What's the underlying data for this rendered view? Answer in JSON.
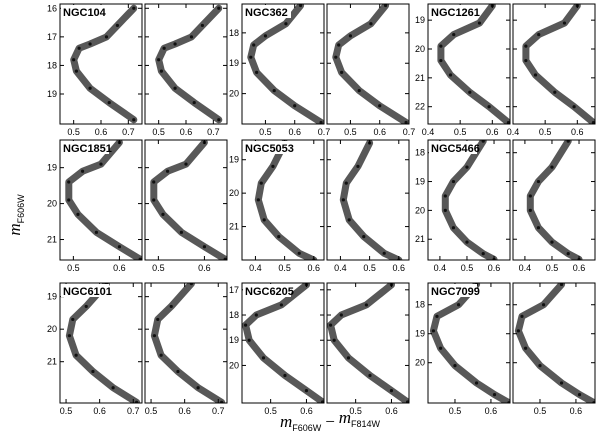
{
  "ylabel": "m",
  "ylabel_sub": "F606W",
  "xlabel_parts": [
    {
      "text": "m"
    },
    {
      "text": "F606W",
      "sub": true
    },
    {
      "text": "−"
    },
    {
      "text": "m"
    },
    {
      "text": "F814W",
      "sub": true
    }
  ],
  "chart_data": [
    {
      "type": "scatter",
      "title": "NGC104",
      "y_inverted": true,
      "color": "#111111",
      "xlim": [
        0.45,
        0.75
      ],
      "xticks": [
        0.5,
        0.6,
        0.7
      ],
      "ylim": [
        15.85,
        20.05
      ],
      "yticks": [
        16,
        17,
        18,
        19
      ],
      "x": [
        0.72,
        0.66,
        0.62,
        0.56,
        0.52,
        0.5,
        0.51,
        0.56,
        0.63,
        0.72
      ],
      "values": [
        16.0,
        16.6,
        17.0,
        17.25,
        17.4,
        17.8,
        18.2,
        18.8,
        19.3,
        19.9
      ]
    },
    {
      "type": "scatter",
      "title": "NGC362",
      "y_inverted": true,
      "color": "#111111",
      "xlim": [
        0.42,
        0.7
      ],
      "xticks": [
        0.5,
        0.6,
        0.7
      ],
      "ylim": [
        17.05,
        21.0
      ],
      "yticks": [
        18,
        19,
        20
      ],
      "x": [
        0.62,
        0.57,
        0.5,
        0.46,
        0.45,
        0.47,
        0.53,
        0.6,
        0.69
      ],
      "values": [
        17.1,
        17.7,
        18.1,
        18.4,
        18.8,
        19.3,
        19.9,
        20.4,
        20.95
      ]
    },
    {
      "type": "scatter",
      "title": "NGC1261",
      "y_inverted": true,
      "color": "#111111",
      "xlim": [
        0.4,
        0.655
      ],
      "xticks": [
        0.4,
        0.5,
        0.6
      ],
      "ylim": [
        18.44,
        22.6
      ],
      "yticks": [
        19,
        20,
        21,
        22
      ],
      "x": [
        0.6,
        0.56,
        0.48,
        0.44,
        0.44,
        0.47,
        0.53,
        0.59,
        0.65
      ],
      "values": [
        18.5,
        19.1,
        19.5,
        19.9,
        20.4,
        20.9,
        21.5,
        22.0,
        22.55
      ]
    },
    {
      "type": "scatter",
      "title": "NGC1851",
      "y_inverted": true,
      "color": "#111111",
      "xlim": [
        0.471,
        0.649
      ],
      "xticks": [
        0.5,
        0.6
      ],
      "ylim": [
        18.23,
        21.57
      ],
      "yticks": [
        19,
        20,
        21
      ],
      "x": [
        0.6,
        0.56,
        0.52,
        0.49,
        0.49,
        0.51,
        0.55,
        0.6,
        0.645
      ],
      "values": [
        18.3,
        18.9,
        19.1,
        19.4,
        19.9,
        20.3,
        20.8,
        21.2,
        21.55
      ]
    },
    {
      "type": "scatter",
      "title": "NGC5053",
      "y_inverted": true,
      "color": "#111111",
      "xlim": [
        0.354,
        0.635
      ],
      "xticks": [
        0.4,
        0.5,
        0.6
      ],
      "ylim": [
        18.41,
        22.0
      ],
      "yticks": [
        19,
        20,
        21
      ],
      "x": [
        0.5,
        0.46,
        0.42,
        0.41,
        0.43,
        0.48,
        0.55,
        0.6
      ],
      "values": [
        18.5,
        19.2,
        19.7,
        20.2,
        20.8,
        21.3,
        21.8,
        22.0
      ]
    },
    {
      "type": "scatter",
      "title": "NGC5466",
      "y_inverted": true,
      "color": "#111111",
      "xlim": [
        0.356,
        0.659
      ],
      "xticks": [
        0.4,
        0.5,
        0.6
      ],
      "ylim": [
        17.56,
        21.72
      ],
      "yticks": [
        18,
        19,
        20,
        21
      ],
      "x": [
        0.56,
        0.5,
        0.45,
        0.42,
        0.42,
        0.45,
        0.5,
        0.56,
        0.6
      ],
      "values": [
        17.6,
        18.5,
        19.0,
        19.5,
        20.0,
        20.6,
        21.1,
        21.5,
        21.7
      ]
    },
    {
      "type": "scatter",
      "title": "NGC6101",
      "y_inverted": true,
      "color": "#111111",
      "xlim": [
        0.482,
        0.726
      ],
      "xticks": [
        0.5,
        0.6,
        0.7
      ],
      "ylim": [
        18.58,
        22.27
      ],
      "yticks": [
        19,
        20,
        21
      ],
      "x": [
        0.62,
        0.56,
        0.52,
        0.51,
        0.53,
        0.58,
        0.64,
        0.71
      ],
      "values": [
        18.6,
        19.3,
        19.7,
        20.2,
        20.8,
        21.3,
        21.8,
        22.25
      ]
    },
    {
      "type": "scatter",
      "title": "NGC6205",
      "y_inverted": true,
      "color": "#111111",
      "xlim": [
        0.42,
        0.649
      ],
      "xticks": [
        0.5,
        0.6
      ],
      "ylim": [
        16.73,
        21.49
      ],
      "yticks": [
        17,
        18,
        19,
        20
      ],
      "x": [
        0.6,
        0.53,
        0.46,
        0.43,
        0.44,
        0.48,
        0.54,
        0.6,
        0.645
      ],
      "values": [
        16.8,
        17.6,
        18.0,
        18.4,
        19.0,
        19.7,
        20.4,
        21.0,
        21.45
      ]
    },
    {
      "type": "scatter",
      "title": "NGC7099",
      "y_inverted": true,
      "color": "#111111",
      "xlim": [
        0.425,
        0.653
      ],
      "xticks": [
        0.5,
        0.6
      ],
      "ylim": [
        17.25,
        21.39
      ],
      "yticks": [
        18,
        19,
        20
      ],
      "x": [
        0.56,
        0.51,
        0.45,
        0.44,
        0.46,
        0.5,
        0.56,
        0.61,
        0.65
      ],
      "values": [
        17.3,
        18.0,
        18.4,
        18.9,
        19.5,
        20.1,
        20.7,
        21.1,
        21.38
      ]
    }
  ]
}
